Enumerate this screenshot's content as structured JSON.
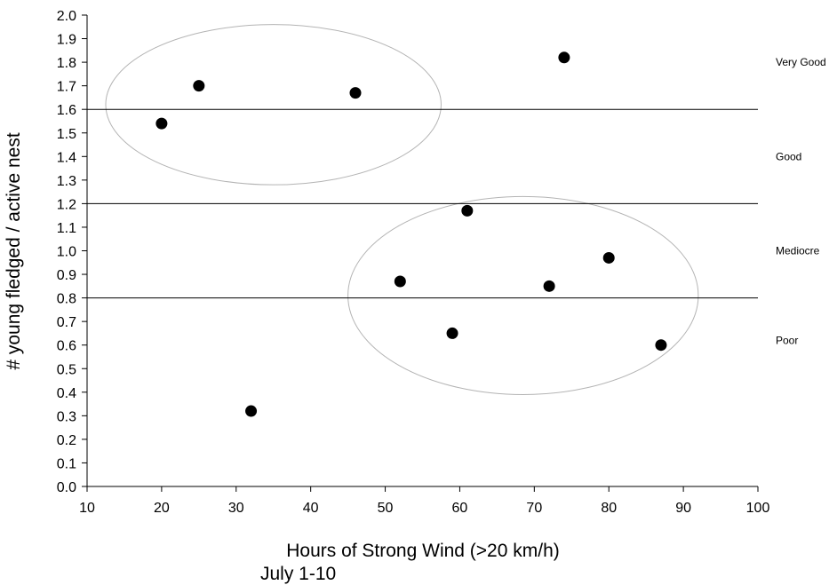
{
  "chart_data": {
    "type": "scatter",
    "title": "",
    "xlabel": "Hours of Strong Wind (>20 km/h)",
    "xlabel_line2": "July 1-10",
    "ylabel": "# young fledged / active nest",
    "xlim": [
      10,
      100
    ],
    "ylim": [
      0.0,
      2.0
    ],
    "x_ticks": [
      "10",
      "20",
      "30",
      "40",
      "50",
      "60",
      "70",
      "80",
      "90",
      "100"
    ],
    "y_ticks": [
      "0.0",
      "0.1",
      "0.2",
      "0.3",
      "0.4",
      "0.5",
      "0.6",
      "0.7",
      "0.8",
      "0.9",
      "1.0",
      "1.1",
      "1.2",
      "1.3",
      "1.4",
      "1.5",
      "1.6",
      "1.7",
      "1.8",
      "1.9",
      "2.0"
    ],
    "grid": false,
    "points": [
      {
        "x": 20,
        "y": 1.54
      },
      {
        "x": 25,
        "y": 1.7
      },
      {
        "x": 32,
        "y": 0.32
      },
      {
        "x": 46,
        "y": 1.67
      },
      {
        "x": 52,
        "y": 0.87
      },
      {
        "x": 59,
        "y": 0.65
      },
      {
        "x": 61,
        "y": 1.17
      },
      {
        "x": 72,
        "y": 0.85
      },
      {
        "x": 74,
        "y": 1.82
      },
      {
        "x": 80,
        "y": 0.97
      },
      {
        "x": 87,
        "y": 0.6
      }
    ],
    "reference_lines": [
      {
        "y": 1.6
      },
      {
        "y": 1.2
      },
      {
        "y": 0.8
      }
    ],
    "band_labels": [
      {
        "label": "Very Good",
        "y": 1.8
      },
      {
        "label": "Good",
        "y": 1.4
      },
      {
        "label": "Mediocre",
        "y": 1.0
      },
      {
        "label": "Poor",
        "y": 0.62
      }
    ],
    "ellipses": [
      {
        "cx": 35,
        "cy": 1.62,
        "rx": 22.5,
        "ry": 0.34
      },
      {
        "cx": 68.5,
        "cy": 0.81,
        "rx": 23.5,
        "ry": 0.42
      }
    ],
    "colors": {
      "points": "#000000",
      "reference_lines": "#000000",
      "ellipses": "#b4b4b4",
      "axes": "#000000"
    }
  }
}
